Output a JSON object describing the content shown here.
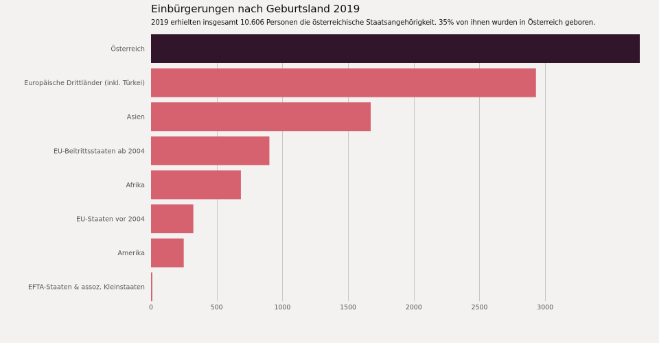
{
  "chart_data": {
    "type": "bar",
    "orientation": "horizontal",
    "title": "Einbürgerungen nach Geburtsland 2019",
    "subtitle": "2019 erhielten insgesamt 10.606 Personen die österreichische Staatsangehörigkeit. 35% von ihnen wurden in Österreich geboren.",
    "xlabel": "",
    "ylabel": "",
    "categories": [
      "Österreich",
      "Europäische Drittländer (inkl. Türkei)",
      "Asien",
      "EU-Beitrittsstaaten ab 2004",
      "Afrika",
      "EU-Staaten vor 2004",
      "Amerika",
      "EFTA-Staaten & assoz. Kleinstaaten"
    ],
    "values": [
      3720,
      2930,
      1672,
      901,
      684,
      322,
      249,
      10
    ],
    "highlight": [
      true,
      false,
      false,
      false,
      false,
      false,
      false,
      false
    ],
    "xlim": [
      0,
      3720
    ],
    "xticks": [
      0,
      500,
      1000,
      1500,
      2000,
      2500,
      3000
    ],
    "xtick_labels": [
      "0",
      "500",
      "1000",
      "1500",
      "2000",
      "2500",
      "3000"
    ],
    "grid": "vertical",
    "legend": "none",
    "colors": {
      "highlight": "#31162b",
      "default": "#d6626f",
      "background": "#f4f2f0",
      "grid": "#c9c7c6"
    }
  }
}
